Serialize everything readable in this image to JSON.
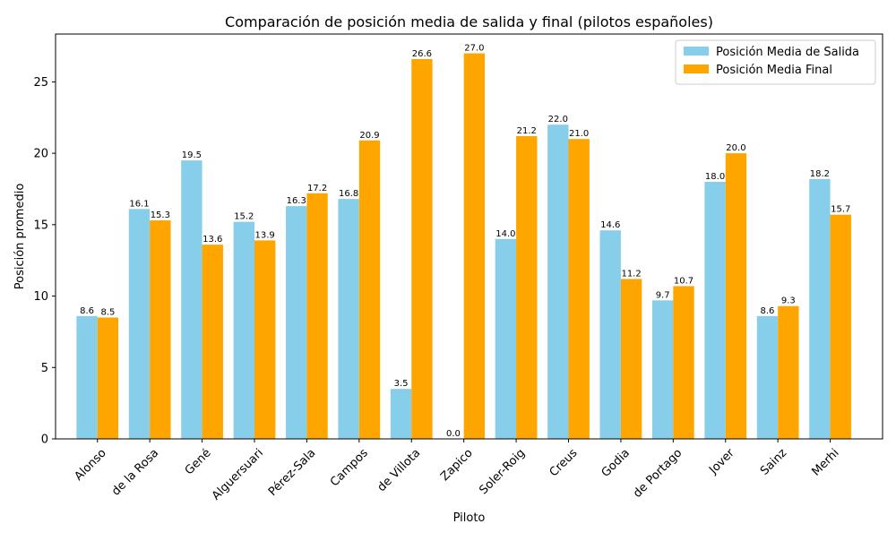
{
  "chart_data": {
    "type": "bar",
    "title": "Comparación de posición media de salida y final (pilotos españoles)",
    "xlabel": "Piloto",
    "ylabel": "Posición promedio",
    "ylim": [
      0,
      28.35
    ],
    "yticks": [
      0,
      5,
      10,
      15,
      20,
      25
    ],
    "grid": false,
    "legend_position": "top-right",
    "categories": [
      "Alonso",
      "de la Rosa",
      "Gené",
      "Alguersuari",
      "Pérez-Sala",
      "Campos",
      "de Villota",
      "Zapico",
      "Soler-Roig",
      "Creus",
      "Godia",
      "de Portago",
      "Jover",
      "Sainz",
      "Merhi"
    ],
    "series": [
      {
        "name": "Posición Media de Salida",
        "color": "#87ceeb",
        "values": [
          8.6,
          16.1,
          19.5,
          15.2,
          16.3,
          16.8,
          3.5,
          0.0,
          14.0,
          22.0,
          14.6,
          9.7,
          18.0,
          8.6,
          18.2
        ],
        "labels": [
          "8.6",
          "16.1",
          "19.5",
          "15.2",
          "16.3",
          "16.8",
          "3.5",
          "0.0",
          "14.0",
          "22.0",
          "14.6",
          "9.7",
          "18.0",
          "8.6",
          "18.2"
        ]
      },
      {
        "name": "Posición Media Final",
        "color": "#ffa500",
        "values": [
          8.5,
          15.3,
          13.6,
          13.9,
          17.2,
          20.9,
          26.6,
          27.0,
          21.2,
          21.0,
          11.2,
          10.7,
          20.0,
          9.3,
          15.7
        ],
        "labels": [
          "8.5",
          "15.3",
          "13.6",
          "13.9",
          "17.2",
          "20.9",
          "26.6",
          "27.0",
          "21.2",
          "21.0",
          "11.2",
          "10.7",
          "20.0",
          "9.3",
          "15.7"
        ]
      }
    ]
  }
}
